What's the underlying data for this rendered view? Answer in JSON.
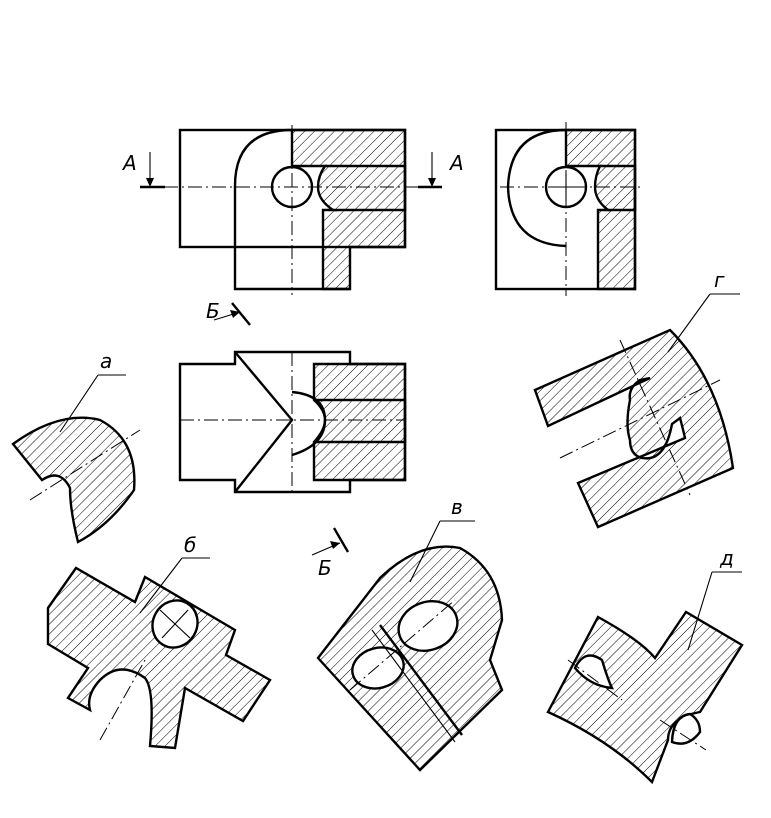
{
  "section_marks": {
    "a_left": "А",
    "a_right": "А",
    "b_top": "Б",
    "b_bottom": "Б"
  },
  "variants": {
    "a": "а",
    "b": "б",
    "v": "в",
    "g": "г",
    "d": "д"
  },
  "colors": {
    "line": "#000000",
    "background": "#ffffff"
  }
}
